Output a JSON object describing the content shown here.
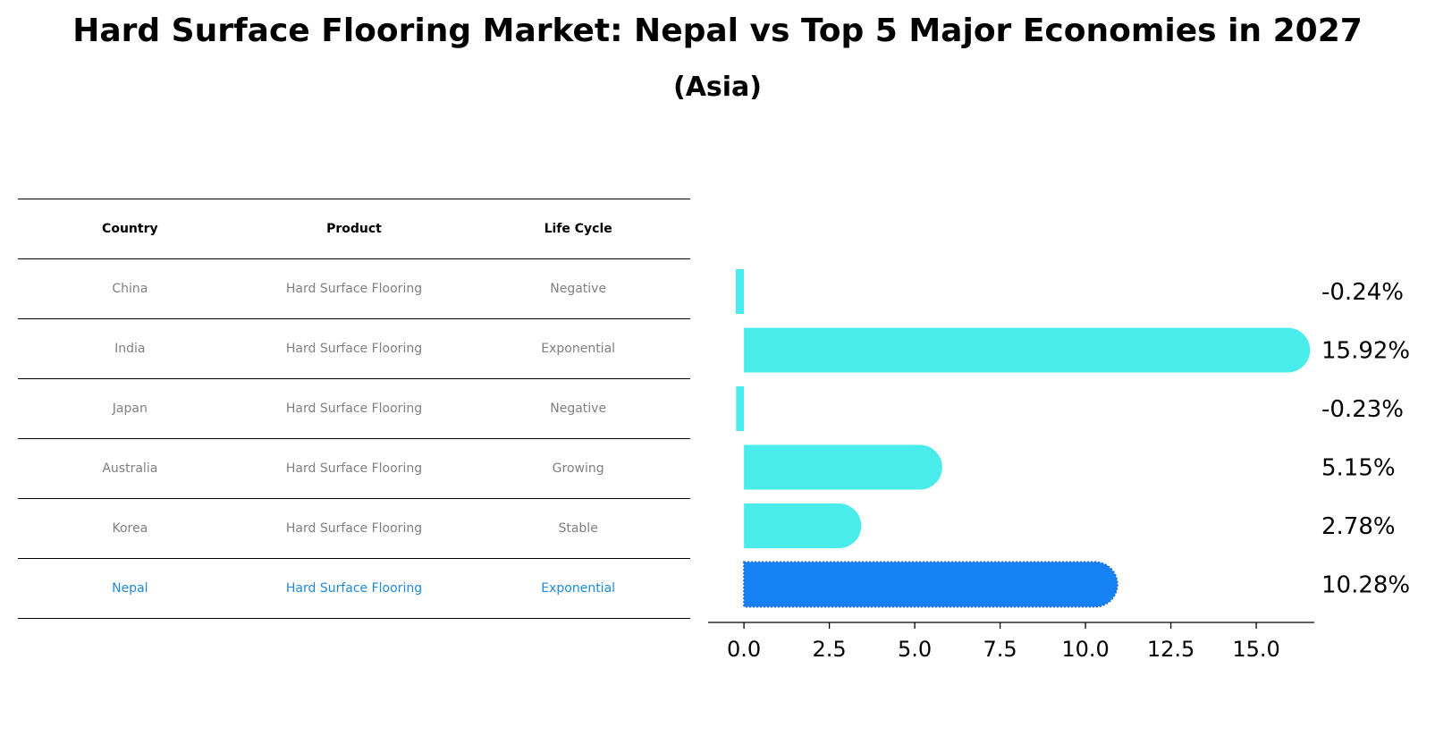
{
  "title": "Hard Surface Flooring Market: Nepal vs Top 5 Major Economies in 2027",
  "subtitle": "(Asia)",
  "table": {
    "headers": [
      "Country",
      "Product",
      "Life Cycle"
    ],
    "rows": [
      {
        "country": "China",
        "product": "Hard Surface Flooring",
        "life_cycle": "Negative",
        "highlight": false
      },
      {
        "country": "India",
        "product": "Hard Surface Flooring",
        "life_cycle": "Exponential",
        "highlight": false
      },
      {
        "country": "Japan",
        "product": "Hard Surface Flooring",
        "life_cycle": "Negative",
        "highlight": false
      },
      {
        "country": "Australia",
        "product": "Hard Surface Flooring",
        "life_cycle": "Growing",
        "highlight": false
      },
      {
        "country": "Korea",
        "product": "Hard Surface Flooring",
        "life_cycle": "Stable",
        "highlight": false
      },
      {
        "country": "Nepal",
        "product": "Hard Surface Flooring",
        "life_cycle": "Exponential",
        "highlight": true
      }
    ]
  },
  "colors": {
    "bar": "#4aeceb",
    "highlight_bar": "#1782f4",
    "highlight_text": "#1f8adb",
    "muted_text": "#808080"
  },
  "chart_data": {
    "type": "bar",
    "orientation": "horizontal",
    "categories": [
      "China",
      "India",
      "Japan",
      "Australia",
      "Korea",
      "Nepal"
    ],
    "values": [
      -0.24,
      15.92,
      -0.23,
      5.15,
      2.78,
      10.28
    ],
    "value_labels": [
      "-0.24%",
      "15.92%",
      "-0.23%",
      "5.15%",
      "2.78%",
      "10.28%"
    ],
    "highlight": "Nepal",
    "xlim": [
      -1.05,
      16.7
    ],
    "xticks": [
      0.0,
      2.5,
      5.0,
      7.5,
      10.0,
      12.5,
      15.0
    ],
    "xtick_labels": [
      "0.0",
      "2.5",
      "5.0",
      "7.5",
      "10.0",
      "12.5",
      "15.0"
    ],
    "grid": false,
    "title": "",
    "xlabel": "",
    "ylabel": ""
  }
}
